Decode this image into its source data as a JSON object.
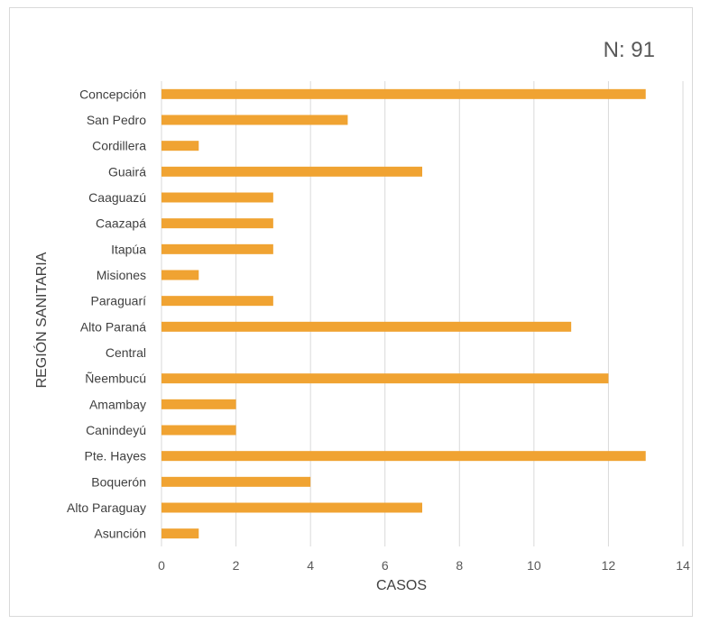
{
  "chart_data": {
    "type": "bar",
    "orientation": "horizontal",
    "annotation": "N: 91",
    "xlabel": "CASOS",
    "ylabel": "REGIÓN SANITARIA",
    "xlim": [
      0,
      14
    ],
    "xticks": [
      "0",
      "2",
      "4",
      "6",
      "8",
      "10",
      "12",
      "14"
    ],
    "grid": "vertical",
    "bar_color": "#f0a332",
    "categories": [
      "Concepción",
      "San  Pedro",
      "Cordillera",
      "Guairá",
      "Caaguazú",
      "Caazapá",
      "Itapúa",
      "Misiones",
      "Paraguarí",
      "Alto Paraná",
      "Central",
      "Ñeembucú",
      "Amambay",
      "Canindeyú",
      "Pte. Hayes",
      "Boquerón",
      "Alto Paraguay",
      "Asunción"
    ],
    "values": [
      13,
      5,
      1,
      7,
      3,
      3,
      3,
      1,
      3,
      11,
      0,
      12,
      2,
      2,
      13,
      4,
      7,
      1
    ]
  }
}
